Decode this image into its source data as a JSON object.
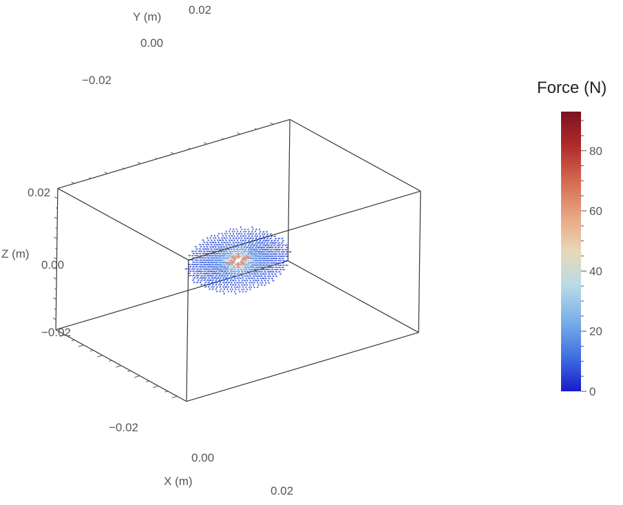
{
  "chart_data": {
    "type": "vector-field-3d",
    "description_field": "radial force field vectors",
    "x_axis": {
      "label": "X (m)",
      "range": [
        -0.035,
        0.035
      ],
      "ticks": [
        {
          "value": -0.02,
          "label": "−0.02"
        },
        {
          "value": 0.0,
          "label": "0.00"
        },
        {
          "value": 0.02,
          "label": "0.02"
        }
      ]
    },
    "y_axis": {
      "label": "Y (m)",
      "range": [
        -0.035,
        0.035
      ],
      "ticks": [
        {
          "value": -0.02,
          "label": "−0.02"
        },
        {
          "value": 0.0,
          "label": "0.00"
        },
        {
          "value": 0.02,
          "label": "0.02"
        }
      ]
    },
    "z_axis": {
      "label": "Z (m)",
      "range": [
        -0.035,
        0.035
      ],
      "ticks": [
        {
          "value": -0.02,
          "label": "−0.02"
        },
        {
          "value": 0.0,
          "label": "0.00"
        },
        {
          "value": 0.02,
          "label": "0.02"
        }
      ]
    },
    "field": {
      "center": [
        0.0,
        0.0,
        0.0
      ],
      "extent_radius_m": 0.014,
      "max_force_N": 93,
      "min_force_N": 0,
      "direction": "inward toward center",
      "magnitude_falloff": "decreasing with distance from center"
    },
    "legend": {
      "title": "Force (N)",
      "placement": "right",
      "range": [
        0,
        93
      ],
      "ticks": [
        {
          "value": 0,
          "label": "0"
        },
        {
          "value": 20,
          "label": "20"
        },
        {
          "value": 40,
          "label": "40"
        },
        {
          "value": 60,
          "label": "60"
        },
        {
          "value": 80,
          "label": "80"
        }
      ],
      "colormap": [
        "#1a1acc",
        "#3d6fe0",
        "#7aaee8",
        "#b9dbe8",
        "#e8d8b8",
        "#e8a884",
        "#d46a52",
        "#b02a2a",
        "#7a1320"
      ]
    }
  },
  "colors": {
    "box_edge": "#333333",
    "tick": "#555555",
    "text": "#555555"
  }
}
